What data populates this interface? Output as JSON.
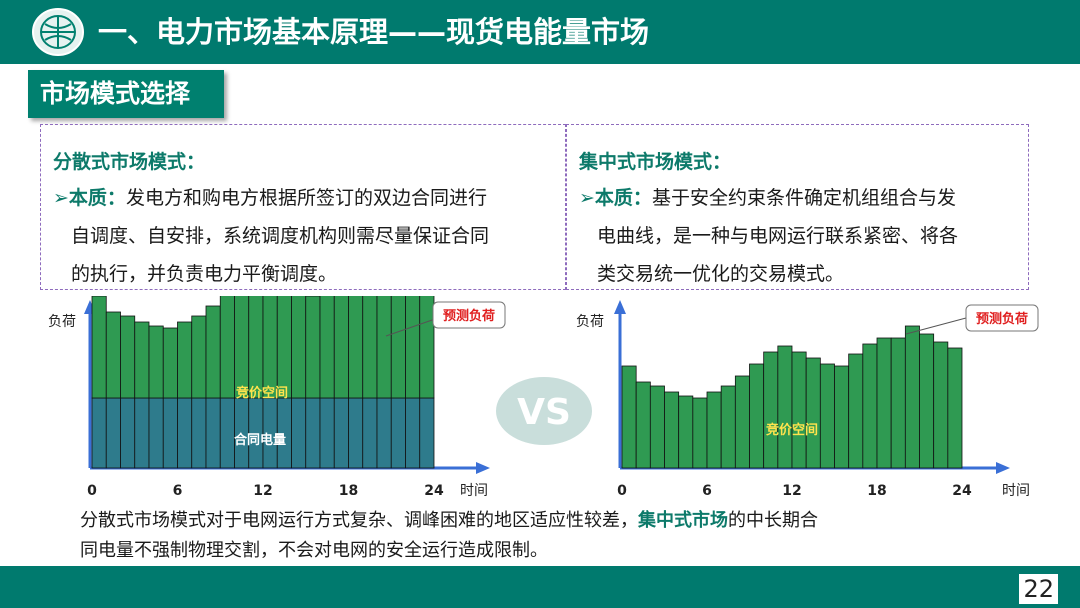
{
  "header": {
    "title": "一、电力市场基本原理——现货电能量市场",
    "logo_icon": "state-grid-logo-icon"
  },
  "section": {
    "label": "市场模式选择"
  },
  "left_card": {
    "title": "分散式市场模式：",
    "bullet_key": "本质：",
    "line1": "发电方和购电方根据所签订的双边合同进行",
    "line2": "自调度、自安排，系统调度机构则需尽量保证合同",
    "line3": "的执行，并负责电力平衡调度。"
  },
  "right_card": {
    "title": "集中式市场模式：",
    "bullet_key": "本质：",
    "line1": "基于安全约束条件确定机组组合与发",
    "line2": "电曲线，是一种与电网运行联系紧密、将各",
    "line3": "类交易统一优化的交易模式。"
  },
  "vs_label": "VS",
  "chart_data": [
    {
      "type": "bar",
      "stacked": true,
      "xlabel": "时间",
      "ylabel": "负荷",
      "xlim": [
        0,
        24
      ],
      "x_ticks": [
        "0",
        "6",
        "12",
        "18",
        "24"
      ],
      "callout": "预测负荷",
      "series": [
        {
          "name": "合同电量",
          "color": "#2e7b8c",
          "values": [
            35,
            35,
            35,
            35,
            35,
            35,
            35,
            35,
            35,
            35,
            35,
            35,
            35,
            35,
            35,
            35,
            35,
            35,
            35,
            35,
            35,
            35,
            35,
            35
          ]
        },
        {
          "name": "竞价空间",
          "color": "#2f9a52",
          "values": [
            51,
            43,
            41,
            38,
            36,
            35,
            38,
            41,
            46,
            52,
            58,
            61,
            58,
            55,
            52,
            51,
            57,
            62,
            65,
            65,
            71,
            67,
            63,
            60
          ]
        }
      ]
    },
    {
      "type": "bar",
      "stacked": false,
      "xlabel": "时间",
      "ylabel": "负荷",
      "xlim": [
        0,
        24
      ],
      "x_ticks": [
        "0",
        "6",
        "12",
        "18",
        "24"
      ],
      "callout": "预测负荷",
      "series": [
        {
          "name": "竞价空间",
          "color": "#2f9a52",
          "values": [
            51,
            43,
            41,
            38,
            36,
            35,
            38,
            41,
            46,
            52,
            58,
            61,
            58,
            55,
            52,
            51,
            57,
            62,
            65,
            65,
            71,
            67,
            63,
            60
          ]
        }
      ]
    }
  ],
  "bottom": {
    "text_a": "分散式市场模式对于电网运行方式复杂、调峰困难的地区适应性较差，",
    "highlight": "集中式市场",
    "text_b": "的中长期合",
    "text_c": "同电量不强制物理交割，不会对电网的安全运行造成限制。"
  },
  "page_number": "22"
}
